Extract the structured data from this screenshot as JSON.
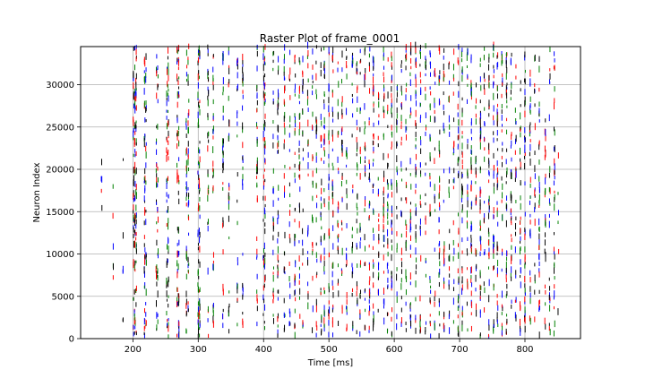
{
  "chart_data": {
    "type": "scatter",
    "style": "raster",
    "title": "Raster Plot of frame_0001",
    "xlabel": "Time [ms]",
    "ylabel": "Neuron Index",
    "xlim": [
      120,
      885
    ],
    "ylim": [
      0,
      34500
    ],
    "xticks": [
      200,
      300,
      400,
      500,
      600,
      700,
      800
    ],
    "yticks": [
      0,
      5000,
      10000,
      15000,
      20000,
      25000,
      30000
    ],
    "grid": true,
    "series_colors": [
      "#0000ff",
      "#ff0000",
      "#000000",
      "#008000"
    ],
    "spike_columns_ms": [
      152,
      170,
      185,
      201,
      203,
      205,
      218,
      220,
      236,
      238,
      252,
      254,
      268,
      270,
      282,
      285,
      300,
      302,
      315,
      323,
      338,
      347,
      360,
      368,
      390,
      400,
      402,
      415,
      422,
      432,
      440,
      448,
      455,
      460,
      468,
      475,
      481,
      488,
      493,
      500,
      506,
      514,
      520,
      527,
      536,
      543,
      548,
      555,
      562,
      568,
      576,
      584,
      590,
      596,
      604,
      611,
      618,
      625,
      633,
      640,
      648,
      655,
      662,
      669,
      676,
      684,
      691,
      698,
      704,
      712,
      718,
      725,
      732,
      738,
      745,
      752,
      758,
      765,
      772,
      779,
      786,
      793,
      800,
      808,
      815,
      822,
      831,
      838,
      845,
      851
    ]
  }
}
